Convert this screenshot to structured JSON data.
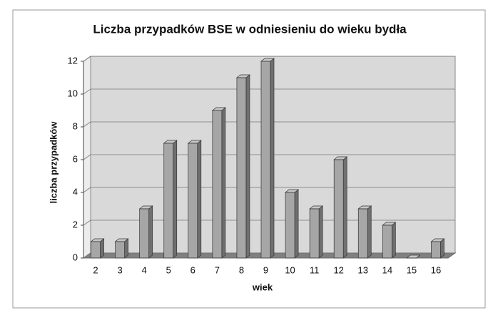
{
  "chart_data": {
    "type": "bar3d",
    "title": "Liczba przypadków BSE w odniesieniu do wieku bydła",
    "x_label": "wiek",
    "y_label": "liczba przypadków",
    "categories": [
      "2",
      "3",
      "4",
      "5",
      "6",
      "7",
      "8",
      "9",
      "10",
      "11",
      "12",
      "13",
      "14",
      "15",
      "16"
    ],
    "values": [
      1,
      1,
      3,
      7,
      7,
      9,
      11,
      12,
      4,
      3,
      6,
      3,
      2,
      0,
      1
    ],
    "color": "#a6a6a6",
    "ylim": [
      0,
      12
    ],
    "yticks": [
      0,
      2,
      4,
      6,
      8,
      10,
      12
    ],
    "grid": true
  }
}
